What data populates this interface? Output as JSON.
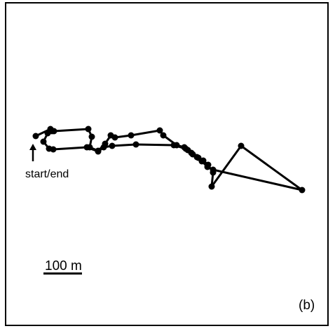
{
  "panel": {
    "label": "(b)"
  },
  "track": {
    "start_end_label": "start/end",
    "scale_label": "100 m",
    "line_color": "#000000",
    "point_color": "#000000"
  }
}
